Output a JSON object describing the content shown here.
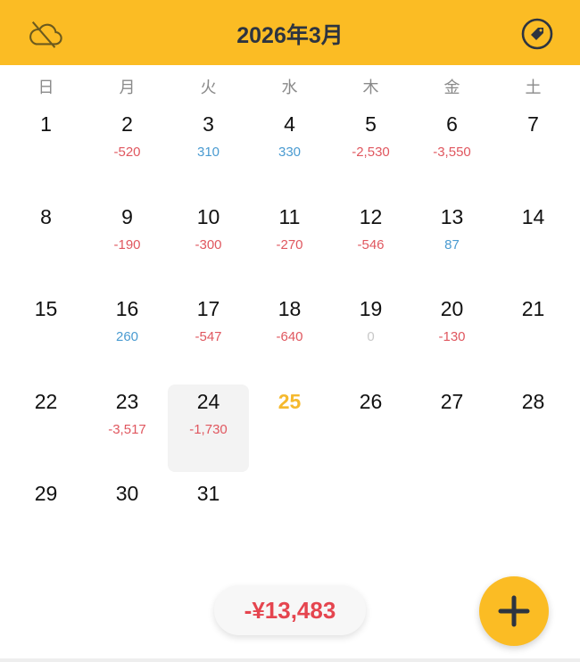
{
  "header": {
    "title": "2026年3月",
    "left_icon": "cloud-off-icon",
    "right_icon": "tag-icon",
    "background": "#FBBC24"
  },
  "weekdays": [
    "日",
    "月",
    "火",
    "水",
    "木",
    "金",
    "土"
  ],
  "colors": {
    "expense": "#E0575F",
    "income": "#4A9BD1",
    "zero": "#C8C8C8",
    "today": "#F5B92E"
  },
  "weeks": [
    [
      {
        "day": "1",
        "amount": ""
      },
      {
        "day": "2",
        "amount": "-520",
        "type": "expense"
      },
      {
        "day": "3",
        "amount": "310",
        "type": "income"
      },
      {
        "day": "4",
        "amount": "330",
        "type": "income"
      },
      {
        "day": "5",
        "amount": "-2,530",
        "type": "expense"
      },
      {
        "day": "6",
        "amount": "-3,550",
        "type": "expense"
      },
      {
        "day": "7",
        "amount": ""
      }
    ],
    [
      {
        "day": "8",
        "amount": ""
      },
      {
        "day": "9",
        "amount": "-190",
        "type": "expense"
      },
      {
        "day": "10",
        "amount": "-300",
        "type": "expense"
      },
      {
        "day": "11",
        "amount": "-270",
        "type": "expense"
      },
      {
        "day": "12",
        "amount": "-546",
        "type": "expense"
      },
      {
        "day": "13",
        "amount": "87",
        "type": "income"
      },
      {
        "day": "14",
        "amount": ""
      }
    ],
    [
      {
        "day": "15",
        "amount": ""
      },
      {
        "day": "16",
        "amount": "260",
        "type": "income"
      },
      {
        "day": "17",
        "amount": "-547",
        "type": "expense"
      },
      {
        "day": "18",
        "amount": "-640",
        "type": "expense"
      },
      {
        "day": "19",
        "amount": "0",
        "type": "zero"
      },
      {
        "day": "20",
        "amount": "-130",
        "type": "expense"
      },
      {
        "day": "21",
        "amount": ""
      }
    ],
    [
      {
        "day": "22",
        "amount": ""
      },
      {
        "day": "23",
        "amount": "-3,517",
        "type": "expense"
      },
      {
        "day": "24",
        "amount": "-1,730",
        "type": "expense",
        "selected": true
      },
      {
        "day": "25",
        "amount": "",
        "today": true
      },
      {
        "day": "26",
        "amount": ""
      },
      {
        "day": "27",
        "amount": ""
      },
      {
        "day": "28",
        "amount": ""
      }
    ],
    [
      {
        "day": "29",
        "amount": ""
      },
      {
        "day": "30",
        "amount": ""
      },
      {
        "day": "31",
        "amount": ""
      }
    ]
  ],
  "total": "-¥13,483",
  "fab": {
    "icon": "plus-icon"
  }
}
